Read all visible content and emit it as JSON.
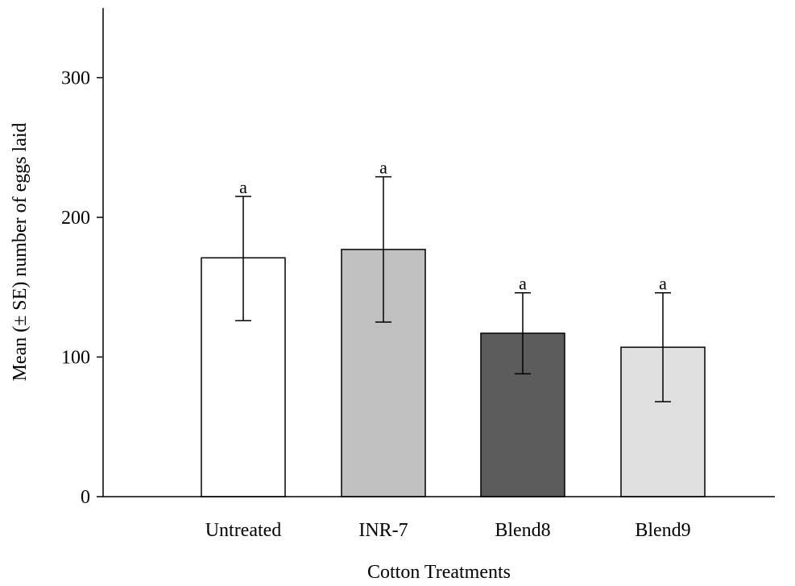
{
  "chart_data": {
    "type": "bar",
    "title": "",
    "xlabel": "Cotton Treatments",
    "ylabel": "Mean (± SE) number of eggs laid",
    "ylim": [
      0,
      350
    ],
    "yticks": [
      0,
      100,
      200,
      300
    ],
    "grid": false,
    "categories": [
      "Untreated",
      "INR-7",
      "Blend8",
      "Blend9"
    ],
    "values": [
      171,
      177,
      117,
      107
    ],
    "error_low": [
      126,
      125,
      88,
      68
    ],
    "error_high": [
      215,
      229,
      146,
      146
    ],
    "significance_labels": [
      "a",
      "a",
      "a",
      "a"
    ],
    "colors": [
      "#ffffff",
      "#c0c0c0",
      "#5c5c5c",
      "#e0e0e0"
    ]
  }
}
